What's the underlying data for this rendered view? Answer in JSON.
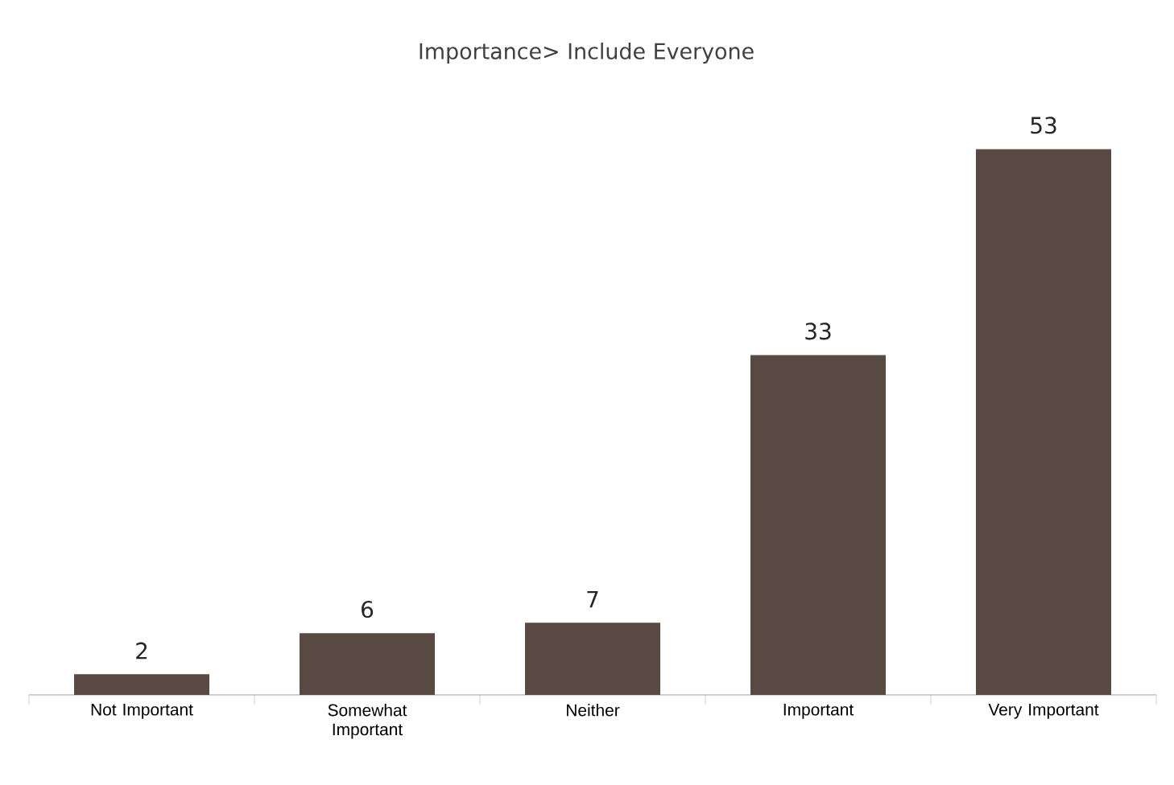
{
  "chart_data": {
    "type": "bar",
    "title": "Importance> Include Everyone",
    "categories": [
      "Not Important",
      "Somewhat Important",
      "Neither",
      "Important",
      "Very Important"
    ],
    "values": [
      2,
      6,
      7,
      33,
      53
    ],
    "color": "#584a42",
    "data_labels": true
  }
}
